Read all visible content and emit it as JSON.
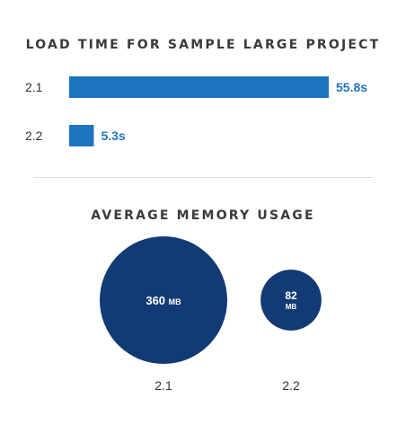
{
  "chart_data": [
    {
      "type": "bar",
      "orientation": "horizontal",
      "title": "LOAD TIME FOR SAMPLE LARGE PROJECT",
      "categories": [
        "2.1",
        "2.2"
      ],
      "values": [
        55.8,
        5.3
      ],
      "value_labels": [
        "55.8s",
        "5.3s"
      ],
      "unit": "s",
      "color": "#1f74c1",
      "label_color": "#1f74c1",
      "xlim": [
        0,
        55.8
      ]
    },
    {
      "type": "bubble",
      "title": "AVERAGE MEMORY USAGE",
      "categories": [
        "2.1",
        "2.2"
      ],
      "values": [
        360,
        82
      ],
      "value_labels": [
        {
          "number": "360",
          "unit": "MB"
        },
        {
          "number": "82",
          "unit": "MB"
        }
      ],
      "unit": "MB",
      "color": "#123a74",
      "text_color": "#ffffff"
    }
  ]
}
